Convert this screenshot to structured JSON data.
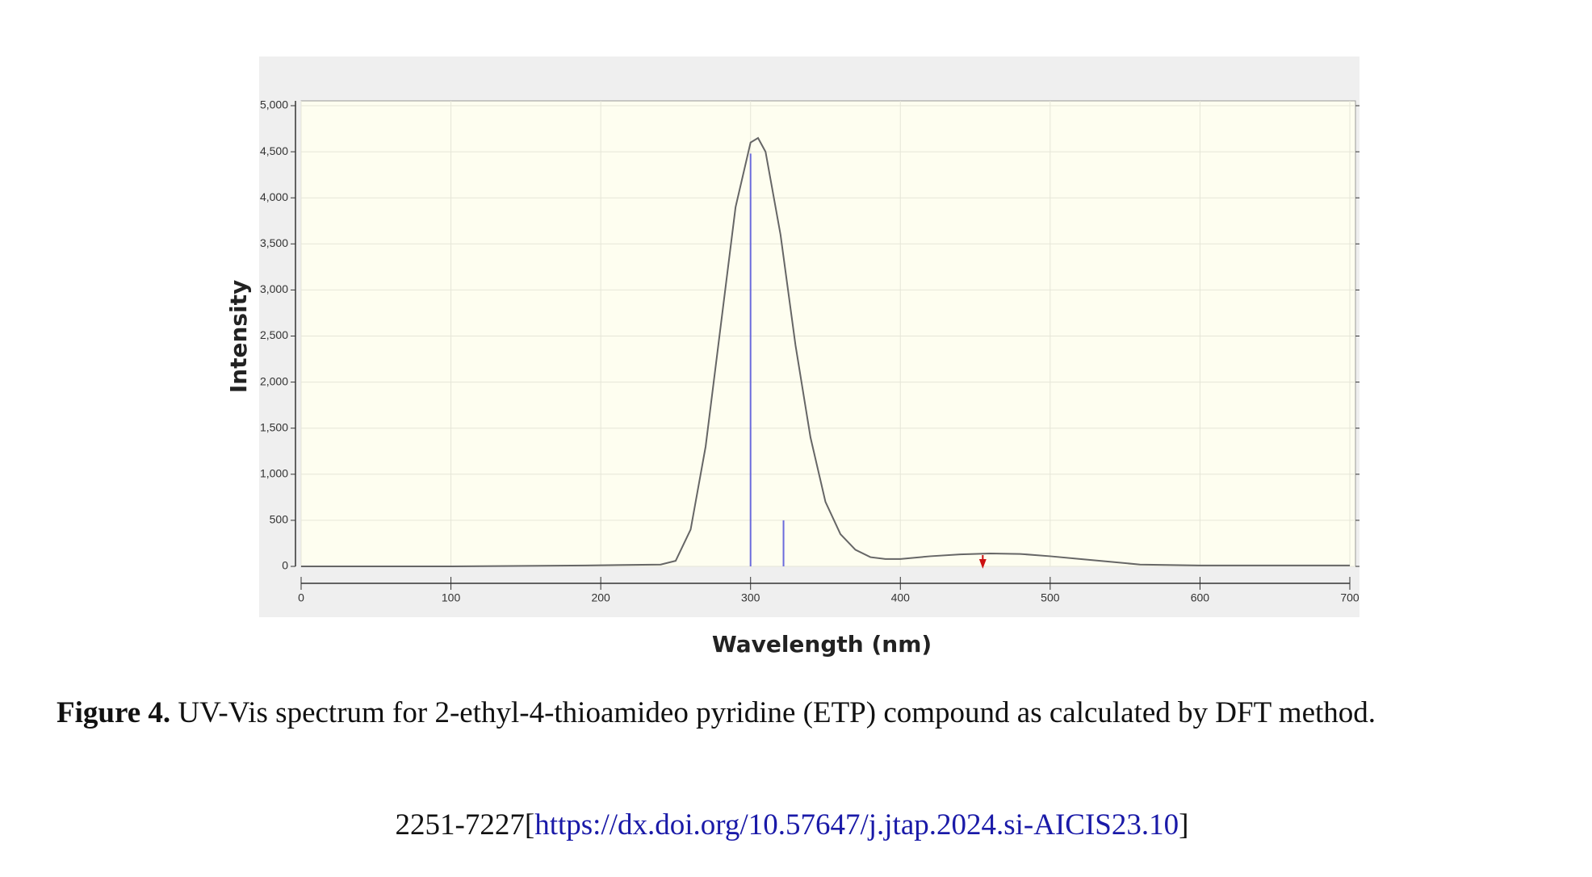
{
  "chart_data": {
    "type": "line",
    "x_label": "Wavelength (nm)",
    "y_label": "Intensity",
    "x": [
      0,
      100,
      190,
      240,
      250,
      260,
      270,
      280,
      290,
      300,
      305,
      310,
      320,
      330,
      340,
      350,
      360,
      370,
      380,
      390,
      400,
      420,
      440,
      460,
      480,
      500,
      520,
      540,
      560,
      600,
      700
    ],
    "values": [
      0,
      0,
      10,
      20,
      60,
      400,
      1300,
      2600,
      3900,
      4600,
      4650,
      4500,
      3600,
      2400,
      1400,
      700,
      350,
      180,
      100,
      80,
      80,
      110,
      130,
      140,
      135,
      110,
      80,
      50,
      20,
      10,
      10
    ],
    "color": "#666666",
    "sticks": {
      "x": [
        300,
        322
      ],
      "values": [
        4480,
        500
      ],
      "color": "#6b6bdc"
    },
    "marker": {
      "x": 455,
      "color": "#cc1111"
    },
    "xlim": [
      0,
      700
    ],
    "xticks": [
      0,
      100,
      200,
      300,
      400,
      500,
      600,
      700
    ],
    "ylim": [
      0,
      5000
    ],
    "yticks": [
      0,
      500,
      {
        "value": 1000,
        "label": "1,000"
      },
      {
        "value": 1500,
        "label": "1,500"
      },
      {
        "value": 2000,
        "label": "2,000"
      },
      {
        "value": 2500,
        "label": "2,500"
      },
      {
        "value": 3000,
        "label": "3,000"
      },
      {
        "value": 3500,
        "label": "3,500"
      },
      {
        "value": 4000,
        "label": "4,000"
      },
      {
        "value": 4500,
        "label": "4,500"
      },
      {
        "value": 5000,
        "label": "5,000"
      }
    ],
    "grid": true
  },
  "caption": {
    "label": "Figure 4.",
    "text": " UV-Vis spectrum for 2-ethyl-4-thioamideo pyridine (ETP) compound as calculated by DFT method."
  },
  "footer": {
    "prefix": "2251-7227[",
    "link": "https://dx.doi.org/10.57647/j.jtap.2024.si-AICIS23.10",
    "suffix": "]"
  }
}
